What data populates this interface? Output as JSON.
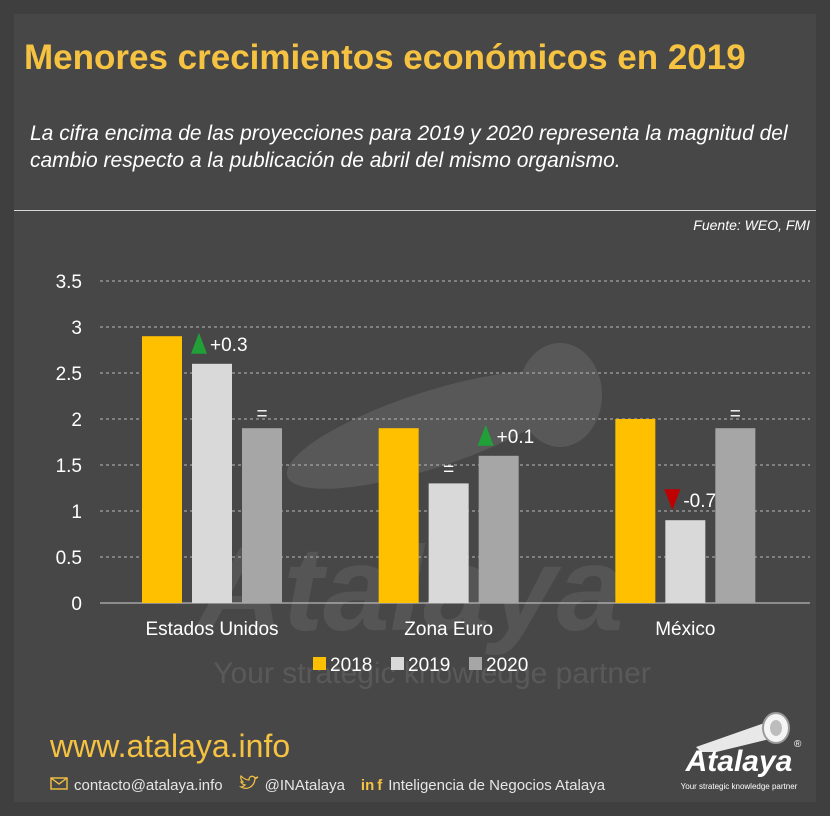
{
  "header": {
    "title": "Menores crecimientos económicos en 2019",
    "subtitle": "La cifra encima de las proyecciones para 2019 y 2020 representa la magnitud del cambio respecto a la publicación de abril del mismo organismo.",
    "source": "Fuente: WEO, FMI"
  },
  "chart_data": {
    "type": "bar",
    "categories": [
      "Estados Unidos",
      "Zona Euro",
      "México"
    ],
    "series": [
      {
        "name": "2018",
        "values": [
          2.9,
          1.9,
          2.0
        ],
        "color": "#ffc000"
      },
      {
        "name": "2019",
        "values": [
          2.6,
          1.3,
          0.9
        ],
        "color": "#d9d9d9"
      },
      {
        "name": "2020",
        "values": [
          1.9,
          1.6,
          1.9
        ],
        "color": "#a6a6a6"
      }
    ],
    "annotations": [
      {
        "category": "Estados Unidos",
        "series": "2019",
        "label": "+0.3",
        "direction": "up"
      },
      {
        "category": "Estados Unidos",
        "series": "2020",
        "label": "=",
        "direction": "none"
      },
      {
        "category": "Zona Euro",
        "series": "2019",
        "label": "=",
        "direction": "none"
      },
      {
        "category": "Zona Euro",
        "series": "2020",
        "label": "+0.1",
        "direction": "up"
      },
      {
        "category": "México",
        "series": "2019",
        "label": "-0.7",
        "direction": "down"
      },
      {
        "category": "México",
        "series": "2020",
        "label": "=",
        "direction": "none"
      }
    ],
    "yticks": [
      "0",
      "0.5",
      "1",
      "1.5",
      "2",
      "2.5",
      "3",
      "3.5"
    ],
    "ylim": [
      0,
      3.5
    ],
    "grid": true,
    "legend_position": "bottom",
    "up_color": "#21a038",
    "down_color": "#c00000"
  },
  "footer": {
    "url": "www.atalaya.info",
    "email": "contacto@atalaya.info",
    "twitter": "@INAtalaya",
    "social_label": "Inteligencia de Negocios Atalaya",
    "logo_name": "Atalaya",
    "logo_tagline": "Your strategic knowledge partner"
  },
  "watermark": {
    "word": "Atalaya",
    "tagline": "Your strategic knowledge partner"
  }
}
